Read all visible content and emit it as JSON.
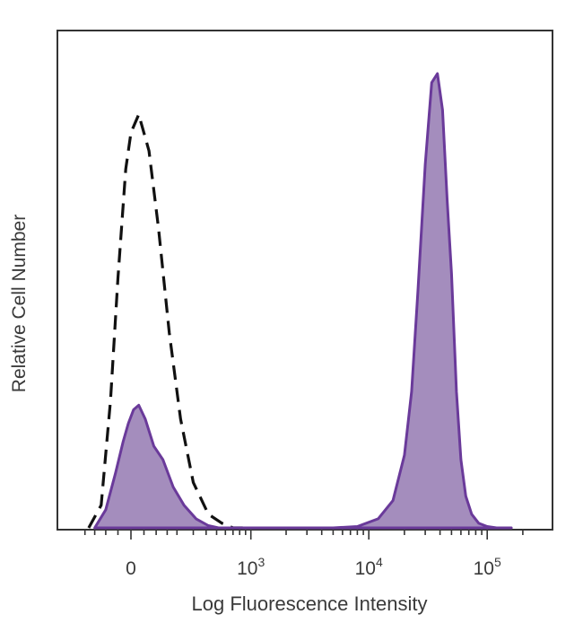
{
  "chart_data": {
    "type": "area",
    "title": "",
    "xlabel": "Log Fluorescence Intensity",
    "ylabel": "Relative Cell Number",
    "xscale": "biexponential",
    "xticks": [
      {
        "value": 0,
        "base": "0",
        "exp": ""
      },
      {
        "value": 1000,
        "base": "10",
        "exp": "3"
      },
      {
        "value": 10000,
        "base": "10",
        "exp": "4"
      },
      {
        "value": 100000,
        "base": "10",
        "exp": "5"
      }
    ],
    "ylim": [
      0,
      1
    ],
    "grid": false,
    "legend": "none",
    "colors": {
      "stained_fill": "#a48dbd",
      "stained_line": "#6a3a9a",
      "control_line": "#111111",
      "frame": "#333333"
    },
    "series": [
      {
        "style": "dashed-outline",
        "x": [
          -180,
          -120,
          -80,
          -50,
          -20,
          0,
          30,
          70,
          110,
          160,
          220,
          300,
          420,
          560,
          700,
          850
        ],
        "y": [
          0.0,
          0.05,
          0.28,
          0.55,
          0.79,
          0.87,
          0.91,
          0.83,
          0.66,
          0.43,
          0.24,
          0.1,
          0.03,
          0.01,
          0.0,
          0.0
        ]
      },
      {
        "style": "filled",
        "x": [
          -150,
          -100,
          -60,
          -30,
          -10,
          10,
          30,
          55,
          90,
          130,
          180,
          240,
          320,
          420,
          520,
          650,
          800,
          1000,
          2000,
          5000,
          8000,
          12000,
          16000,
          20000,
          23000,
          26000,
          30000,
          34000,
          38000,
          42000,
          46000,
          50000,
          55000,
          60000,
          66000,
          74000,
          85000,
          100000,
          120000,
          160000
        ],
        "y": [
          0.0,
          0.04,
          0.12,
          0.19,
          0.23,
          0.26,
          0.27,
          0.24,
          0.18,
          0.15,
          0.09,
          0.05,
          0.02,
          0.005,
          0.0,
          0.0,
          0.0,
          0.0,
          0.0,
          0.0,
          0.003,
          0.02,
          0.06,
          0.16,
          0.3,
          0.52,
          0.8,
          0.98,
          1.0,
          0.92,
          0.72,
          0.56,
          0.3,
          0.15,
          0.07,
          0.03,
          0.01,
          0.003,
          0.0,
          0.0
        ]
      }
    ]
  }
}
